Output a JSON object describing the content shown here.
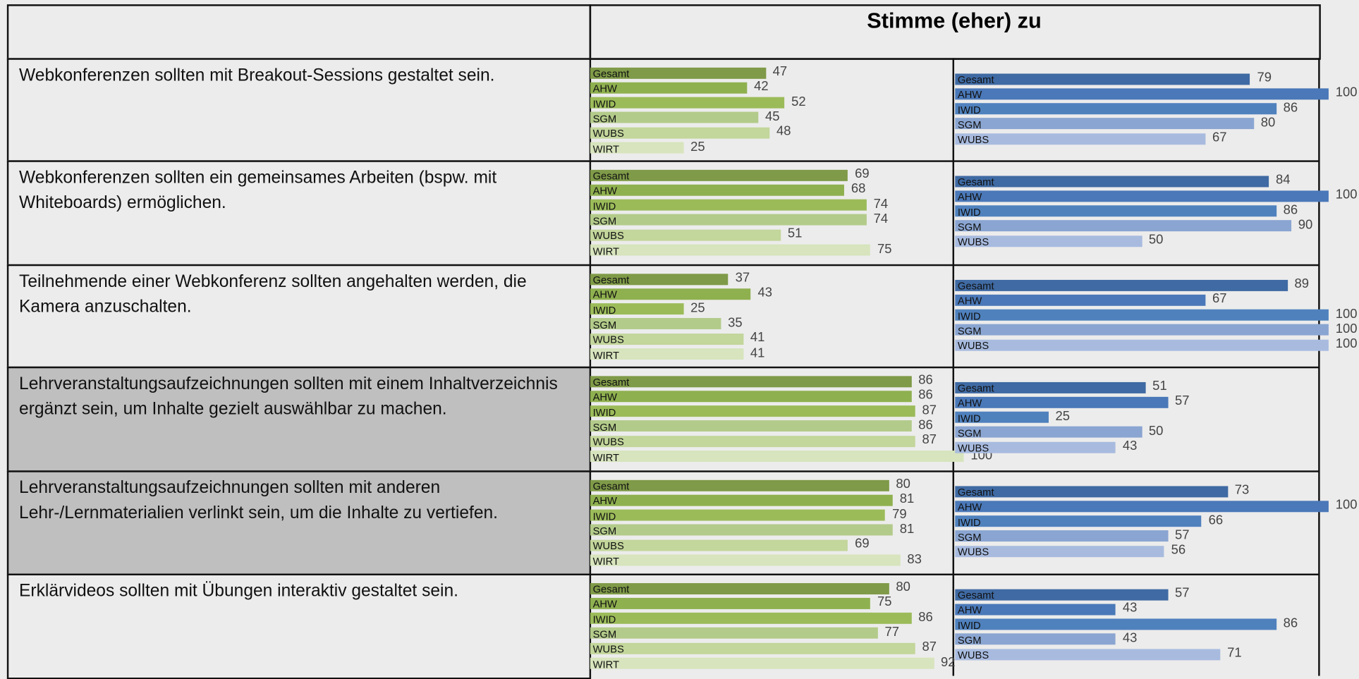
{
  "header": {
    "title": "Stimme (eher) zu"
  },
  "groups": {
    "green": [
      "Gesamt",
      "AHW",
      "IWID",
      "SGM",
      "WUBS",
      "WIRT"
    ],
    "blue": [
      "Gesamt",
      "AHW",
      "IWID",
      "SGM",
      "WUBS"
    ]
  },
  "rows": [
    {
      "statement": "Webkonferenzen sollten mit Breakout-Sessions gestaltet sein.",
      "green": [
        47,
        42,
        52,
        45,
        48,
        25
      ],
      "blue": [
        79,
        100,
        86,
        80,
        67
      ]
    },
    {
      "statement": "Webkonferenzen sollten ein gemeinsames Arbeiten (bspw. mit Whiteboards) ermöglichen.",
      "green": [
        69,
        68,
        74,
        74,
        51,
        75
      ],
      "blue": [
        84,
        100,
        86,
        90,
        50
      ]
    },
    {
      "statement": "Teilnehmende einer Webkonferenz sollten angehalten werden, die Kamera anzuschalten.",
      "green": [
        37,
        43,
        25,
        35,
        41,
        41
      ],
      "blue": [
        89,
        67,
        100,
        100,
        100
      ]
    },
    {
      "statement": "Lehrveranstaltungsaufzeichnungen sollten mit einem Inhaltverzeichnis ergänzt sein, um Inhalte gezielt auswählbar zu machen.",
      "green": [
        86,
        86,
        87,
        86,
        87,
        100
      ],
      "blue": [
        51,
        57,
        25,
        50,
        43
      ],
      "highlight": true
    },
    {
      "statement": "Lehrveranstaltungsaufzeichnungen sollten mit anderen Lehr-/Lernmaterialien verlinkt sein, um die Inhalte zu vertiefen.",
      "green": [
        80,
        81,
        79,
        81,
        69,
        83
      ],
      "blue": [
        73,
        100,
        66,
        57,
        56
      ],
      "highlight": true
    },
    {
      "statement": "Erklärvideos sollten mit Übungen interaktiv gestaltet sein.",
      "green": [
        80,
        75,
        86,
        77,
        87,
        92
      ],
      "blue": [
        57,
        43,
        86,
        43,
        71
      ]
    }
  ]
}
